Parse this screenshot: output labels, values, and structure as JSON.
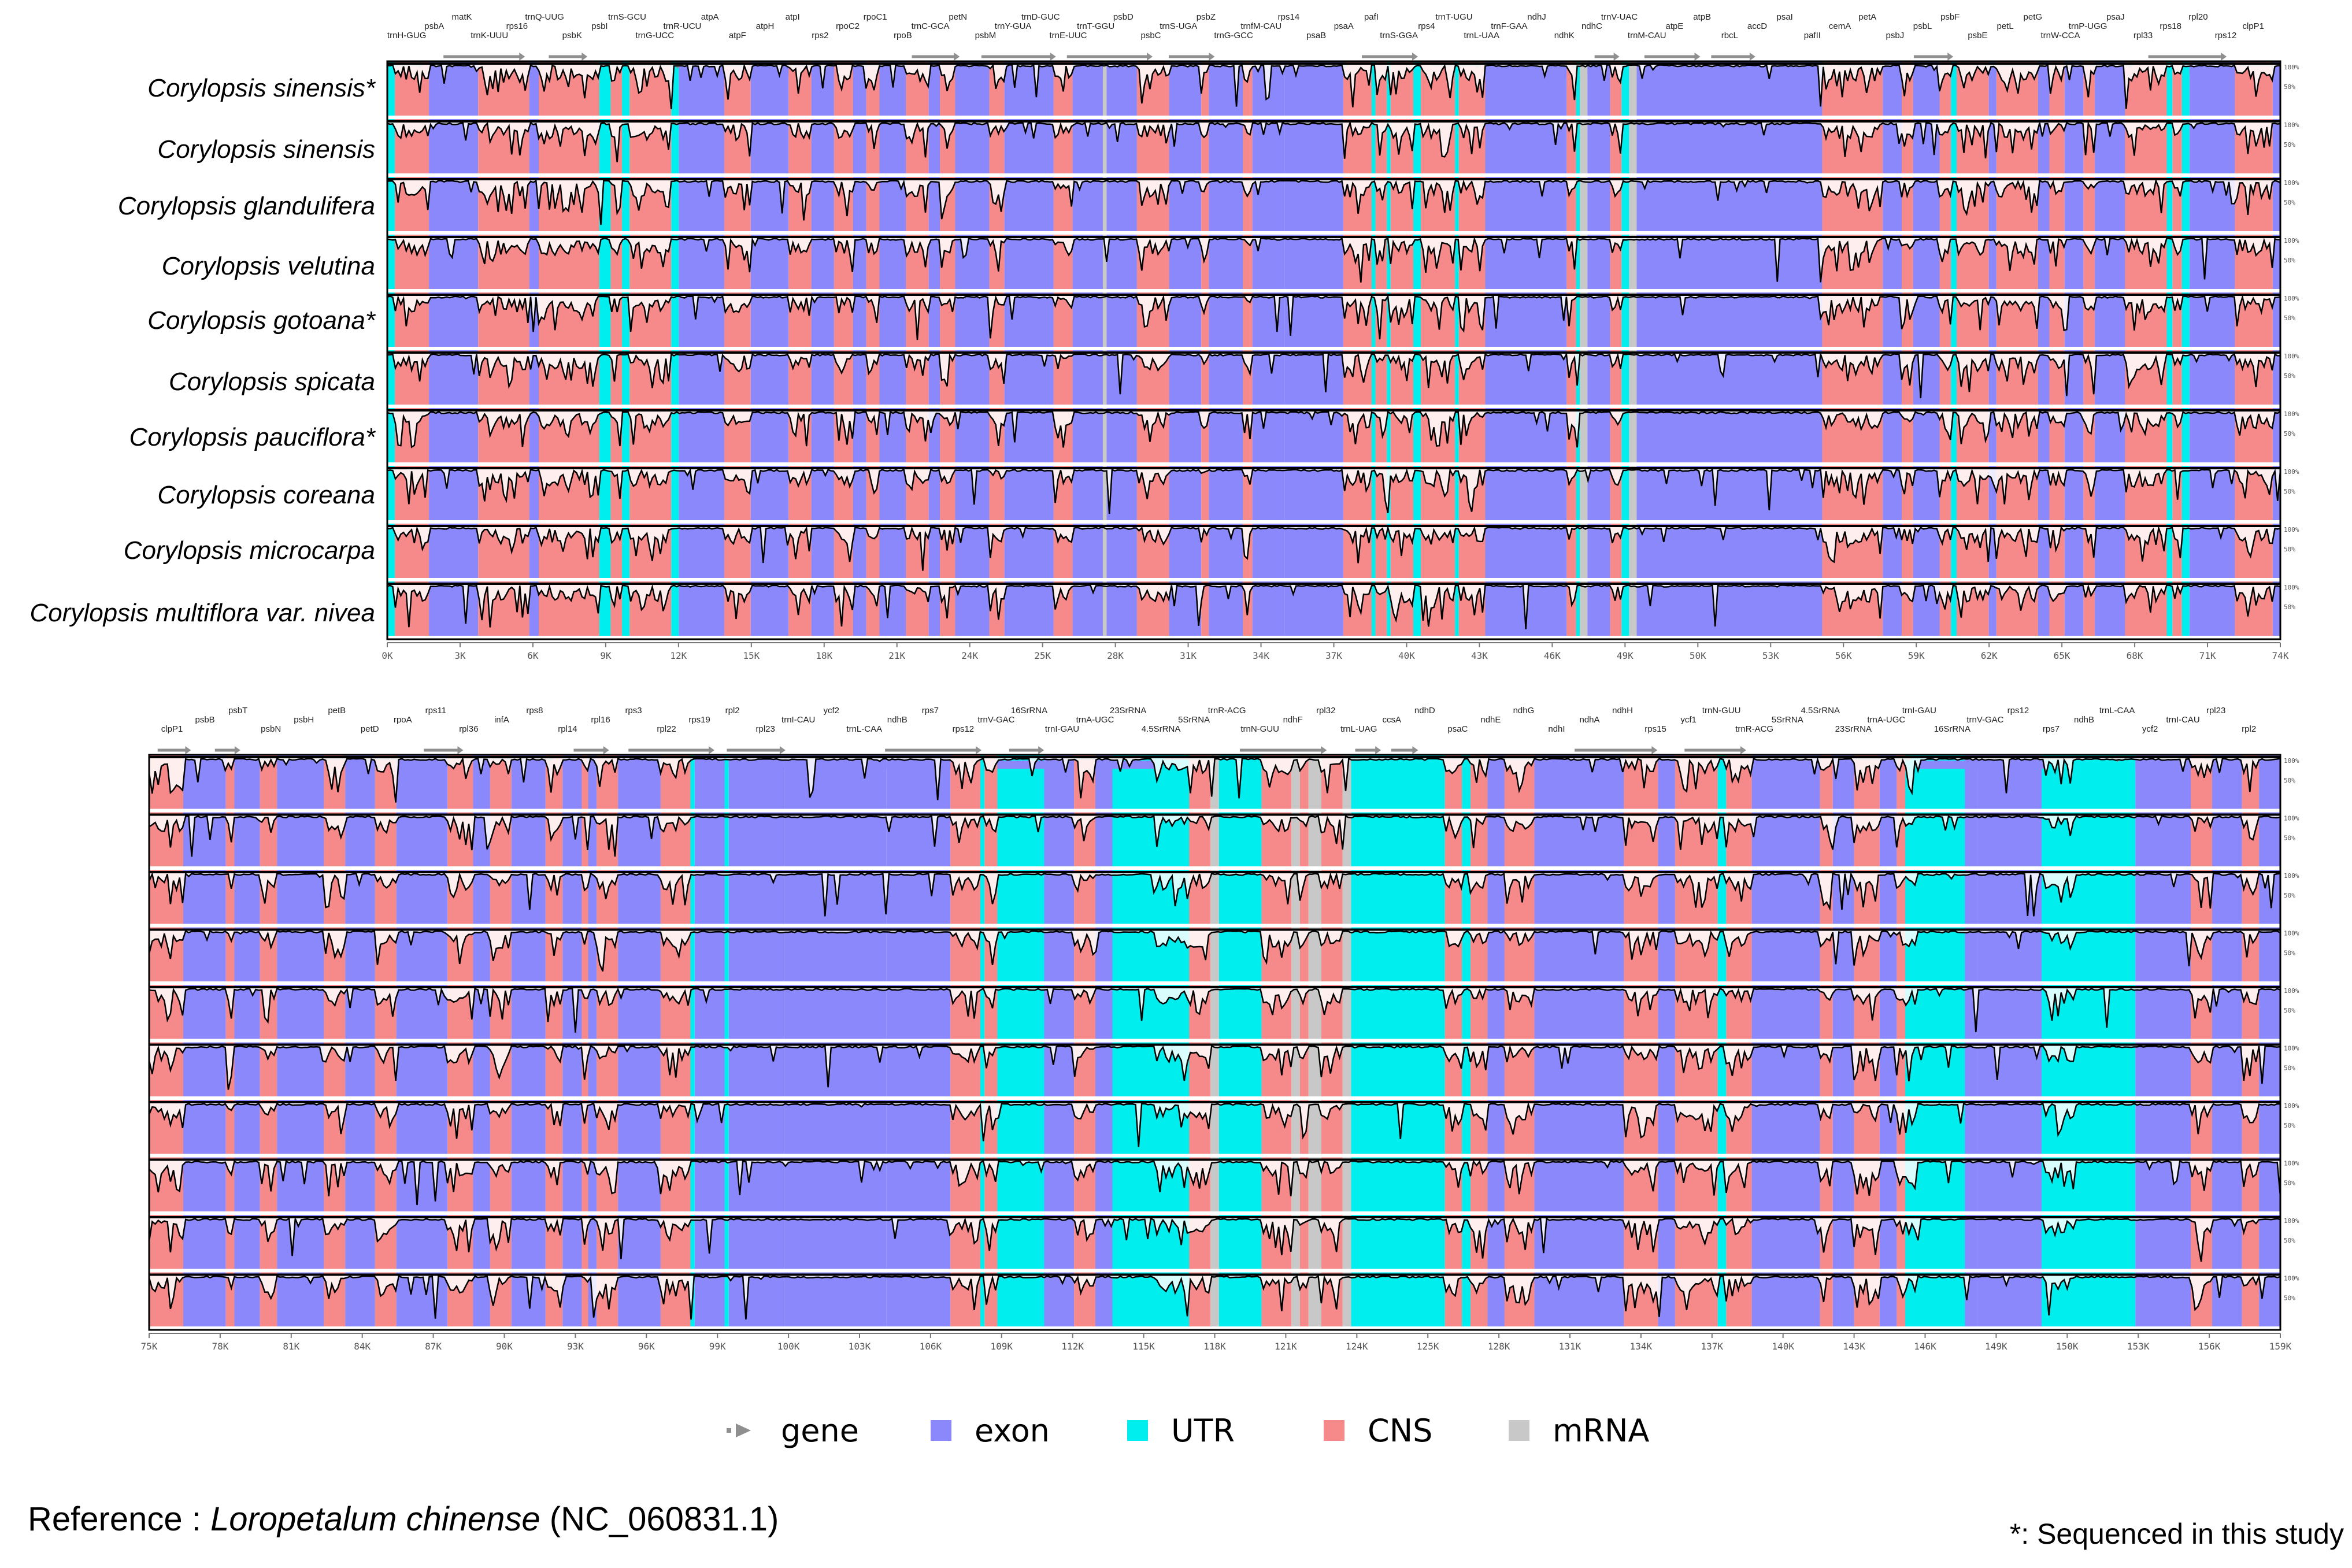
{
  "figure": {
    "species": [
      "Corylopsis sinensis*",
      "Corylopsis sinensis",
      "Corylopsis glandulifera",
      "Corylopsis velutina",
      "Corylopsis gotoana*",
      "Corylopsis spicata",
      "Corylopsis pauciflora*",
      "Corylopsis coreana",
      "Corylopsis microcarpa",
      "Corylopsis multiflora var. nivea"
    ],
    "colors": {
      "exon": "#8a88fa",
      "utr": "#00eeee",
      "cns": "#f68a8a",
      "mrna": "#c8c8c8",
      "gene_arrow": "#8f8f8f",
      "trace": "#000000"
    },
    "panel1": {
      "axis_ticks": [
        "0K",
        "3K",
        "6K",
        "9K",
        "12K",
        "15K",
        "18K",
        "21K",
        "24K",
        "25K",
        "28K",
        "31K",
        "34K",
        "37K",
        "40K",
        "43K",
        "46K",
        "49K",
        "50K",
        "53K",
        "56K",
        "59K",
        "62K",
        "65K",
        "68K",
        "71K",
        "74K"
      ],
      "gene_labels": [
        "trnH-GUG",
        "psbA",
        "matK",
        "trnK-UUU",
        "rps16",
        "trnQ-UUG",
        "psbK",
        "psbI",
        "trnS-GCU",
        "trnG-UCC",
        "trnR-UCU",
        "atpA",
        "atpF",
        "atpH",
        "atpI",
        "rps2",
        "rpoC2",
        "rpoC1",
        "rpoB",
        "trnC-GCA",
        "petN",
        "psbM",
        "trnY-GUA",
        "trnD-GUC",
        "trnE-UUC",
        "trnT-GGU",
        "psbD",
        "psbC",
        "trnS-UGA",
        "psbZ",
        "trnG-GCC",
        "trnfM-CAU",
        "rps14",
        "psaB",
        "psaA",
        "pafI",
        "trnS-GGA",
        "rps4",
        "trnT-UGU",
        "trnL-UAA",
        "trnF-GAA",
        "ndhJ",
        "ndhK",
        "ndhC",
        "trnV-UAC",
        "trnM-CAU",
        "atpE",
        "atpB",
        "rbcL",
        "accD",
        "psaI",
        "pafII",
        "cemA",
        "petA",
        "psbJ",
        "psbL",
        "psbF",
        "psbE",
        "petL",
        "petG",
        "trnW-CCA",
        "trnP-UGG",
        "psaJ",
        "rpl33",
        "rps18",
        "rpl20",
        "rps12",
        "clpP1"
      ]
    },
    "panel2": {
      "axis_ticks": [
        "75K",
        "78K",
        "81K",
        "84K",
        "87K",
        "90K",
        "93K",
        "96K",
        "99K",
        "100K",
        "103K",
        "106K",
        "109K",
        "112K",
        "115K",
        "118K",
        "121K",
        "124K",
        "125K",
        "128K",
        "131K",
        "134K",
        "137K",
        "140K",
        "143K",
        "146K",
        "149K",
        "150K",
        "153K",
        "156K",
        "159K"
      ],
      "gene_labels": [
        "clpP1",
        "psbB",
        "psbT",
        "psbN",
        "psbH",
        "petB",
        "petD",
        "rpoA",
        "rps11",
        "rpl36",
        "infA",
        "rps8",
        "rpl14",
        "rpl16",
        "rps3",
        "rpl22",
        "rps19",
        "rpl2",
        "rpl23",
        "trnI-CAU",
        "ycf2",
        "trnL-CAA",
        "ndhB",
        "rps7",
        "rps12",
        "trnV-GAC",
        "16SrRNA",
        "trnI-GAU",
        "trnA-UGC",
        "23SrRNA",
        "4.5SrRNA",
        "5SrRNA",
        "trnR-ACG",
        "trnN-GUU",
        "ndhF",
        "rpl32",
        "trnL-UAG",
        "ccsA",
        "ndhD",
        "psaC",
        "ndhE",
        "ndhG",
        "ndhI",
        "ndhA",
        "ndhH",
        "rps15",
        "ycf1",
        "trnN-GUU",
        "trnR-ACG",
        "5SrRNA",
        "4.5SrRNA",
        "23SrRNA",
        "trnA-UGC",
        "trnI-GAU",
        "16SrRNA",
        "trnV-GAC",
        "rps12",
        "rps7",
        "ndhB",
        "trnL-CAA",
        "ycf2",
        "trnI-CAU",
        "rpl23",
        "rpl2"
      ]
    },
    "track_scale": [
      "100%",
      "50%"
    ],
    "legend": [
      {
        "key": "gene",
        "label": "gene"
      },
      {
        "key": "exon",
        "label": "exon"
      },
      {
        "key": "utr",
        "label": "UTR"
      },
      {
        "key": "cns",
        "label": "CNS"
      },
      {
        "key": "mrna",
        "label": "mRNA"
      }
    ],
    "reference": {
      "prefix": "Reference : ",
      "species": "Loropetalum chinense",
      "accession": " (NC_060831.1)"
    },
    "note": "*: Sequenced in this study"
  }
}
